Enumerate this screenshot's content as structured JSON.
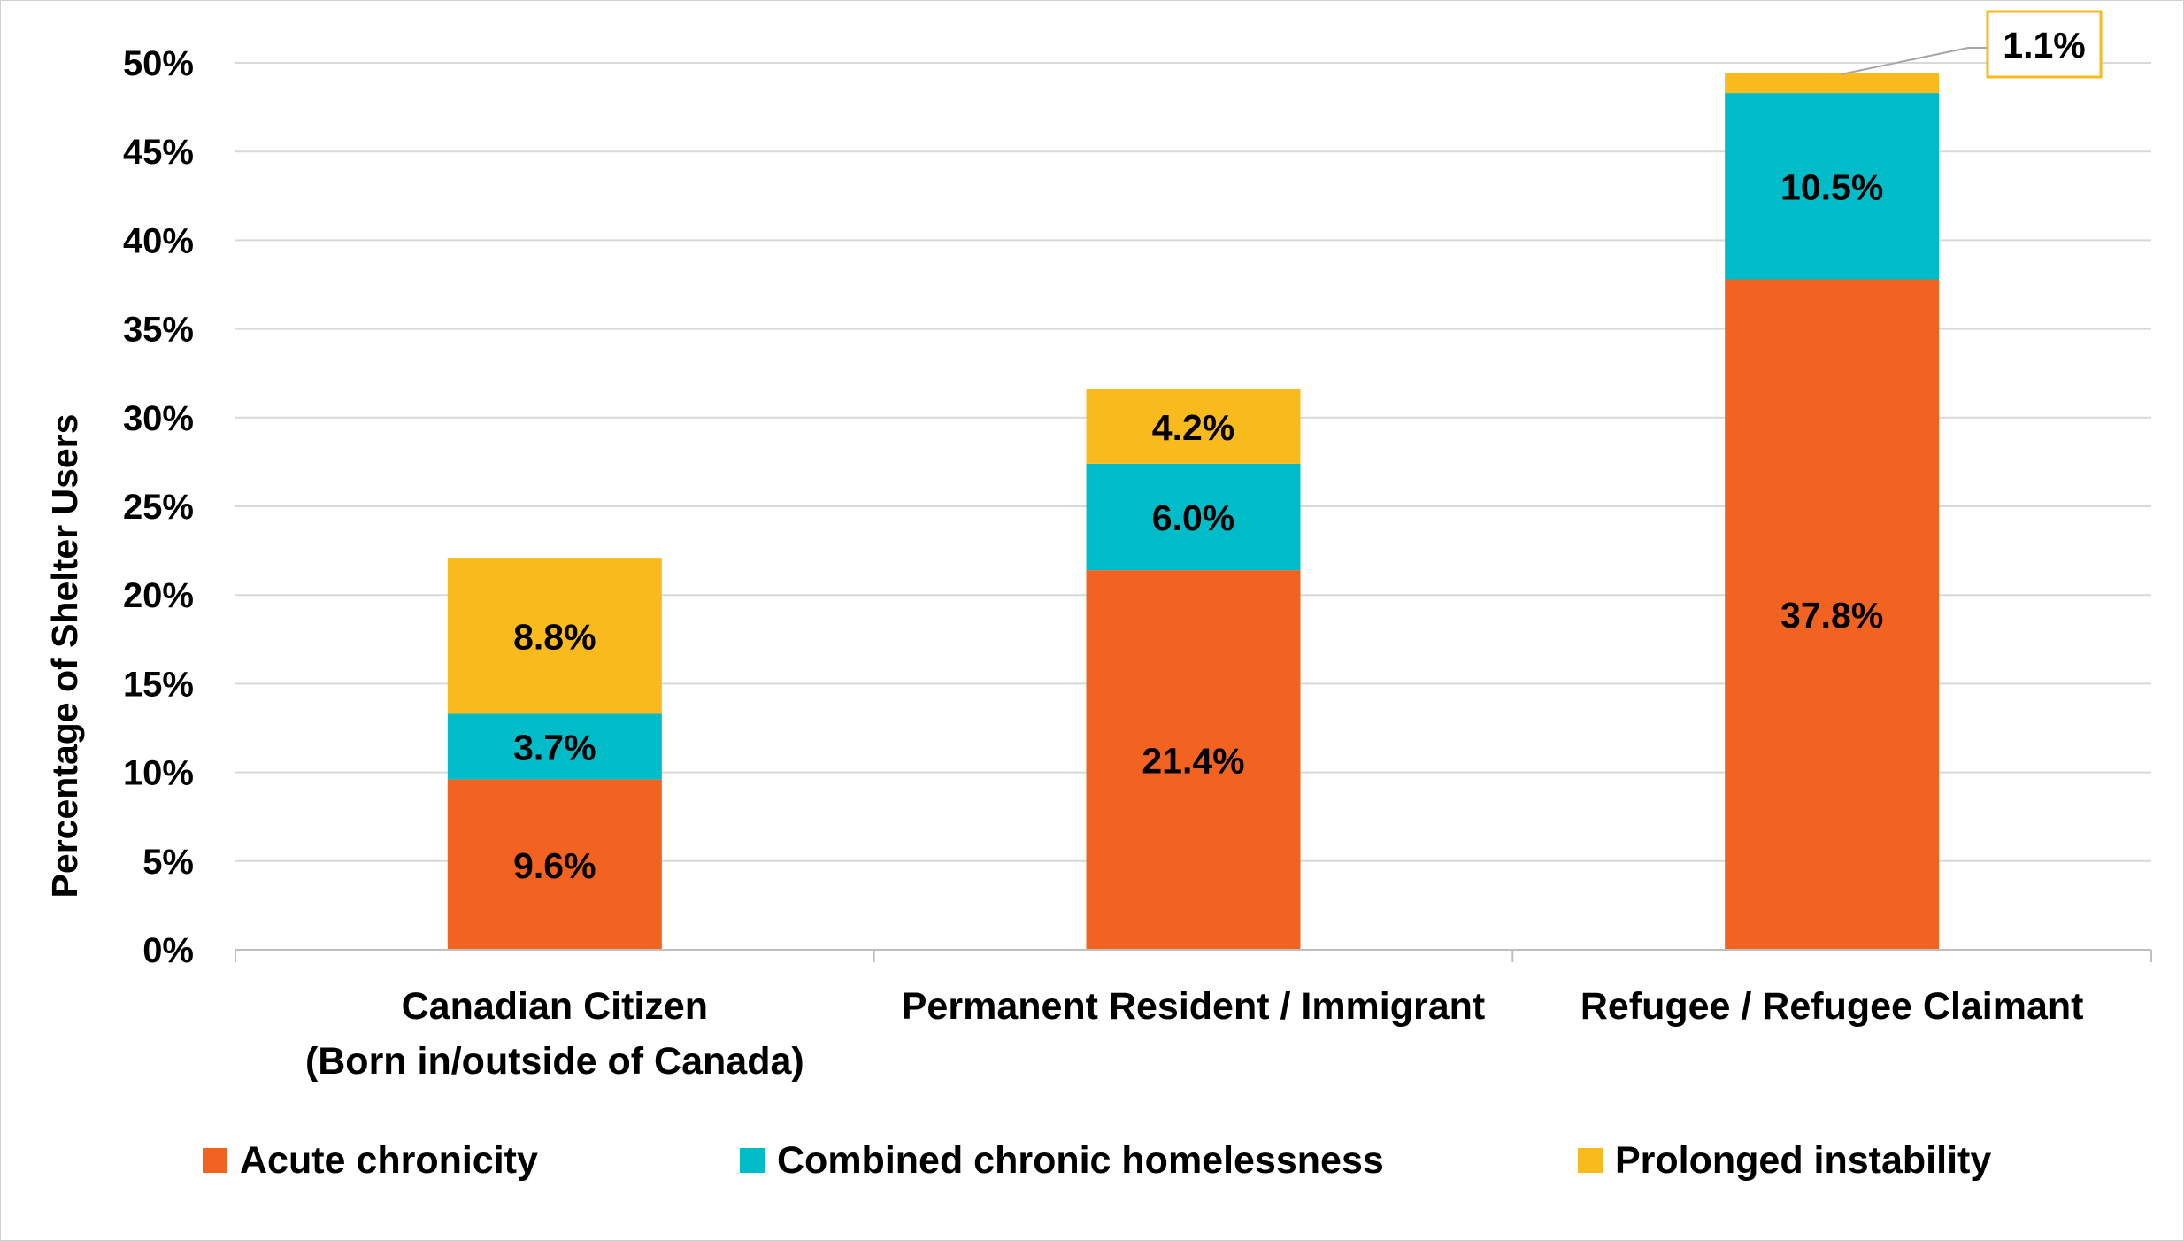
{
  "chart_data": {
    "type": "bar",
    "stacked": true,
    "categories": [
      [
        "Canadian Citizen",
        "(Born in/outside of Canada)"
      ],
      [
        "Permanent Resident / Immigrant"
      ],
      [
        "Refugee / Refugee Claimant"
      ]
    ],
    "series": [
      {
        "name": "Acute chronicity",
        "color": "#F26322",
        "values": [
          9.6,
          21.4,
          37.8
        ],
        "labels": [
          "9.6%",
          "21.4%",
          "37.8%"
        ]
      },
      {
        "name": "Combined chronic homelessness",
        "color": "#00BCC8",
        "values": [
          3.7,
          6.0,
          10.5
        ],
        "labels": [
          "3.7%",
          "6.0%",
          "10.5%"
        ]
      },
      {
        "name": "Prolonged instability",
        "color": "#F8BA1C",
        "values": [
          8.8,
          4.2,
          1.1
        ],
        "labels": [
          "8.8%",
          "4.2%",
          "1.1%"
        ]
      }
    ],
    "callout": {
      "series": 2,
      "category": 2,
      "border_color": "#F8BA1C"
    },
    "ylabel": "Percentage of Shelter Users",
    "xlabel": "",
    "title": "",
    "ylim": [
      0,
      50
    ],
    "yticks": [
      0,
      5,
      10,
      15,
      20,
      25,
      30,
      35,
      40,
      45,
      50
    ],
    "ytick_labels": [
      "0%",
      "5%",
      "10%",
      "15%",
      "20%",
      "25%",
      "30%",
      "35%",
      "40%",
      "45%",
      "50%"
    ],
    "grid": true,
    "legend": "bottom"
  }
}
